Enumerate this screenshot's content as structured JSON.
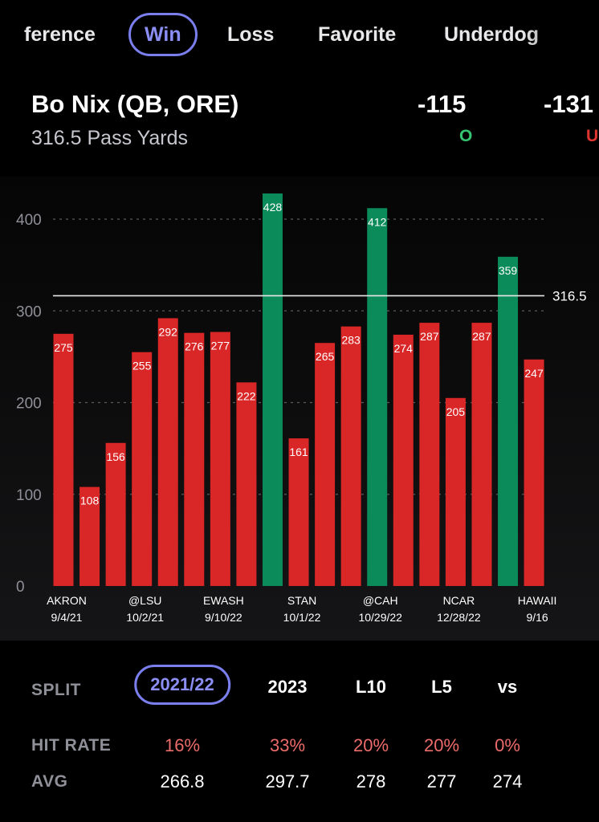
{
  "filter_tabs": [
    "ference",
    "Win",
    "Loss",
    "Favorite",
    "Underdog"
  ],
  "active_filter": "Win",
  "player": {
    "name": "Bo Nix (QB, ORE)",
    "prop": "316.5 Pass Yards"
  },
  "odds": {
    "over": {
      "price": "-115",
      "label": "O",
      "color": "#34c46f"
    },
    "under": {
      "price": "-131",
      "label": "U",
      "color": "#e0352f"
    }
  },
  "colors": {
    "accent": "#7b7fee",
    "hit": "#0b8a5a",
    "miss": "#d92626",
    "hit_rate_text": "#ec6b6b"
  },
  "chart_data": {
    "type": "bar",
    "title": "",
    "xlabel": "",
    "ylabel": "",
    "ylim": [
      0,
      430
    ],
    "yticks": [
      0,
      100,
      200,
      300,
      400
    ],
    "grid": true,
    "threshold": {
      "value": 316.5,
      "label": "316.5"
    },
    "values": [
      275,
      108,
      156,
      255,
      292,
      276,
      277,
      222,
      428,
      161,
      265,
      283,
      412,
      274,
      287,
      205,
      287,
      359,
      247
    ],
    "hit": [
      false,
      false,
      false,
      false,
      false,
      false,
      false,
      false,
      true,
      false,
      false,
      false,
      true,
      false,
      false,
      false,
      false,
      true,
      false
    ],
    "x_labels": [
      {
        "bar": 0,
        "team": "AKRON",
        "date": "9/4/21"
      },
      {
        "bar": 3,
        "team": "@LSU",
        "date": "10/2/21"
      },
      {
        "bar": 6,
        "team": "EWASH",
        "date": "9/10/22"
      },
      {
        "bar": 9,
        "team": "STAN",
        "date": "10/1/22"
      },
      {
        "bar": 12,
        "team": "@CAH",
        "date": "10/29/22"
      },
      {
        "bar": 15,
        "team": "NCAR",
        "date": "12/28/22"
      },
      {
        "bar": 18,
        "team": "HAWAII",
        "date": "9/16"
      }
    ]
  },
  "split": {
    "label": "SPLIT",
    "options": [
      "2021/22",
      "2023",
      "L10",
      "L5",
      "vs"
    ],
    "active": "2021/22"
  },
  "hit_rate": {
    "label": "HIT RATE",
    "values": [
      "16%",
      "33%",
      "20%",
      "20%",
      "0%"
    ]
  },
  "avg": {
    "label": "AVG",
    "values": [
      "266.8",
      "297.7",
      "278",
      "277",
      "274"
    ]
  }
}
